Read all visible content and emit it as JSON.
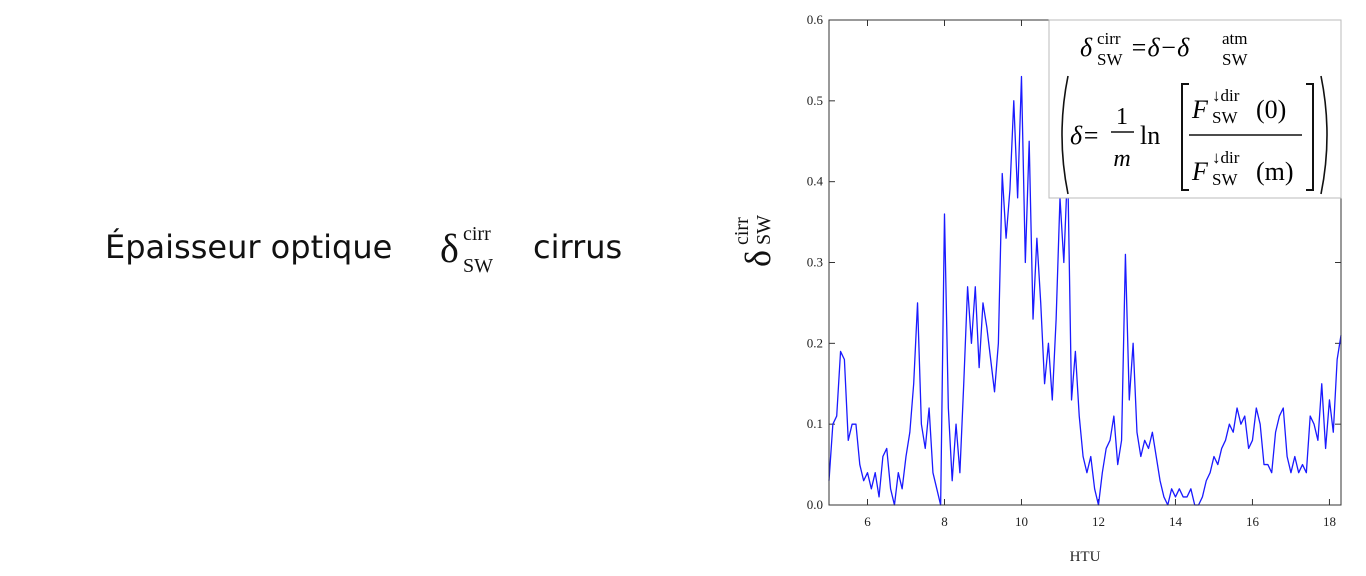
{
  "heading": {
    "before": "Épaisseur optique",
    "symbol": "δ",
    "sup": "cirr",
    "sub": "SW",
    "after": "cirrus"
  },
  "chart_data": {
    "type": "line",
    "xlabel": "HTU",
    "ylabel": {
      "symbol": "δ",
      "sup": "cirr",
      "sub": "SW"
    },
    "annotation": {
      "lhs_symbol": "δ",
      "lhs_sup": "cirr",
      "lhs_sub": "SW",
      "middle": "=δ−δ",
      "rhs_sup": "atm",
      "rhs_sub": "SW",
      "def_lhs": "δ=",
      "frac_num": "1",
      "frac_den": "m",
      "ln": "ln",
      "num_symbol": "F",
      "num_sup": "↓dir",
      "num_sub": "SW",
      "num_arg": "(0)",
      "den_symbol": "F",
      "den_sup": "↓dir",
      "den_sub": "SW",
      "den_arg": "(m)"
    },
    "x": [
      5.0,
      5.1,
      5.2,
      5.3,
      5.4,
      5.5,
      5.6,
      5.7,
      5.8,
      5.9,
      6.0,
      6.1,
      6.2,
      6.3,
      6.4,
      6.5,
      6.6,
      6.7,
      6.8,
      6.9,
      7.0,
      7.1,
      7.2,
      7.3,
      7.4,
      7.5,
      7.6,
      7.7,
      7.8,
      7.9,
      8.0,
      8.1,
      8.2,
      8.3,
      8.4,
      8.5,
      8.6,
      8.7,
      8.8,
      8.9,
      9.0,
      9.1,
      9.2,
      9.3,
      9.4,
      9.5,
      9.6,
      9.7,
      9.8,
      9.9,
      10.0,
      10.1,
      10.2,
      10.3,
      10.4,
      10.5,
      10.6,
      10.7,
      10.8,
      10.9,
      11.0,
      11.1,
      11.2,
      11.3,
      11.4,
      11.5,
      11.6,
      11.7,
      11.8,
      11.9,
      12.0,
      12.1,
      12.2,
      12.3,
      12.4,
      12.5,
      12.6,
      12.7,
      12.8,
      12.9,
      13.0,
      13.1,
      13.2,
      13.3,
      13.4,
      13.5,
      13.6,
      13.7,
      13.8,
      13.9,
      14.0,
      14.1,
      14.2,
      14.3,
      14.4,
      14.5,
      14.6,
      14.7,
      14.8,
      14.9,
      15.0,
      15.1,
      15.2,
      15.3,
      15.4,
      15.5,
      15.6,
      15.7,
      15.8,
      15.9,
      16.0,
      16.1,
      16.2,
      16.3,
      16.4,
      16.5,
      16.6,
      16.7,
      16.8,
      16.9,
      17.0,
      17.1,
      17.2,
      17.3,
      17.4,
      17.5,
      17.6,
      17.7,
      17.8,
      17.9,
      18.0,
      18.1,
      18.2,
      18.3
    ],
    "series": [
      {
        "color": "#1a1aff",
        "values": [
          0.03,
          0.1,
          0.11,
          0.19,
          0.18,
          0.08,
          0.1,
          0.1,
          0.05,
          0.03,
          0.04,
          0.02,
          0.04,
          0.01,
          0.06,
          0.07,
          0.02,
          0.0,
          0.04,
          0.02,
          0.06,
          0.09,
          0.15,
          0.25,
          0.1,
          0.07,
          0.12,
          0.04,
          0.02,
          0.0,
          0.36,
          0.12,
          0.03,
          0.1,
          0.04,
          0.15,
          0.27,
          0.2,
          0.27,
          0.17,
          0.25,
          0.22,
          0.18,
          0.14,
          0.2,
          0.41,
          0.33,
          0.39,
          0.5,
          0.38,
          0.53,
          0.3,
          0.45,
          0.23,
          0.33,
          0.25,
          0.15,
          0.2,
          0.13,
          0.23,
          0.38,
          0.3,
          0.42,
          0.13,
          0.19,
          0.11,
          0.06,
          0.04,
          0.06,
          0.02,
          0.0,
          0.04,
          0.07,
          0.08,
          0.11,
          0.05,
          0.08,
          0.31,
          0.13,
          0.2,
          0.09,
          0.06,
          0.08,
          0.07,
          0.09,
          0.06,
          0.03,
          0.01,
          0.0,
          0.02,
          0.01,
          0.02,
          0.01,
          0.01,
          0.02,
          0.0,
          0.0,
          0.01,
          0.03,
          0.04,
          0.06,
          0.05,
          0.07,
          0.08,
          0.1,
          0.09,
          0.12,
          0.1,
          0.11,
          0.07,
          0.08,
          0.12,
          0.1,
          0.05,
          0.05,
          0.04,
          0.09,
          0.11,
          0.12,
          0.06,
          0.04,
          0.06,
          0.04,
          0.05,
          0.04,
          0.11,
          0.1,
          0.08,
          0.15,
          0.07,
          0.13,
          0.09,
          0.18,
          0.21
        ]
      }
    ],
    "xlim": [
      5,
      18.3
    ],
    "xticks": [
      6,
      8,
      10,
      12,
      14,
      16,
      18
    ],
    "ylim": [
      0,
      0.6
    ],
    "yticks": [
      {
        "value": 0,
        "label": "0.0"
      },
      0.1,
      0.2,
      0.3,
      0.4,
      0.5,
      0.6
    ]
  }
}
